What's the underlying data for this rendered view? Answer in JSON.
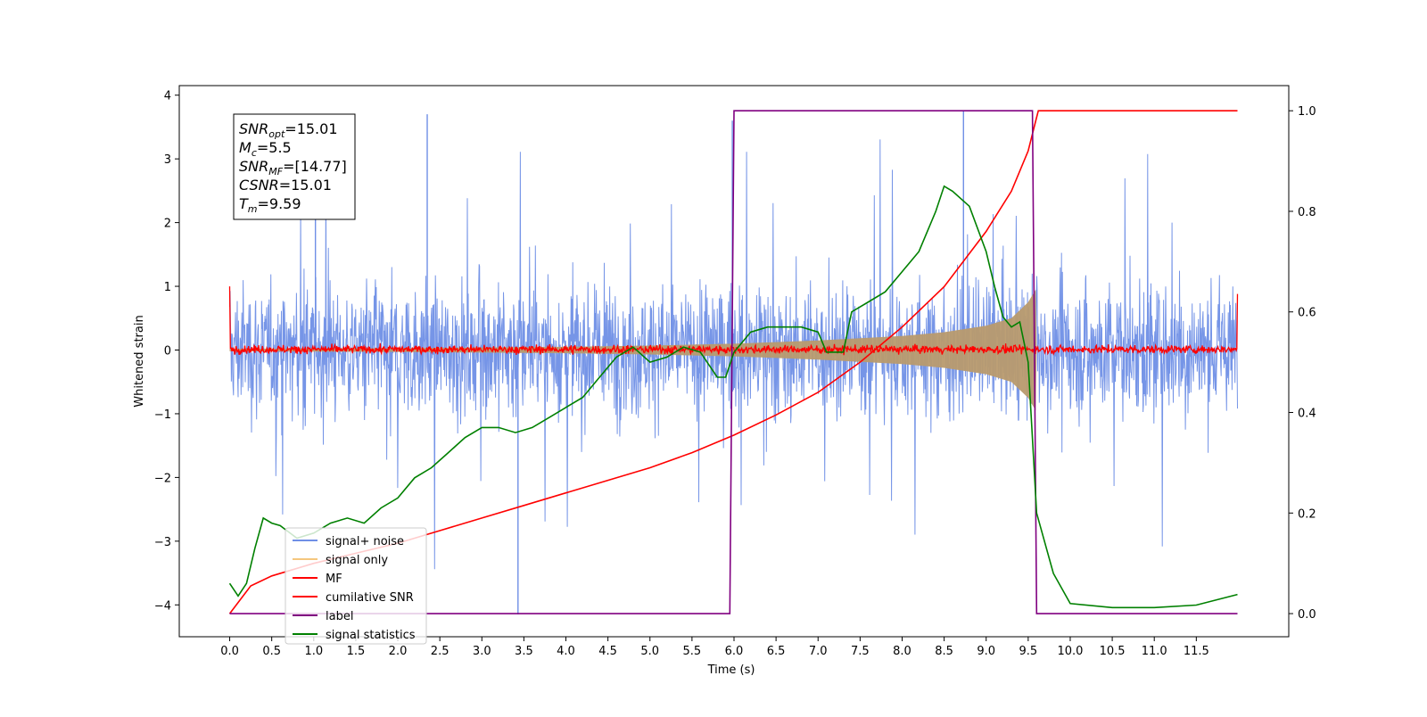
{
  "chart_data": {
    "type": "line",
    "xlabel": "Time (s)",
    "ylabel_left": "Whitened strain",
    "ylabel_right": "",
    "xlim": [
      -0.6,
      12.6
    ],
    "ylim_left": [
      -4.5,
      4.15
    ],
    "ylim_right": [
      -0.046,
      1.05
    ],
    "x_ticks": [
      "0.0",
      "0.5",
      "1.0",
      "1.5",
      "2.0",
      "2.5",
      "3.0",
      "3.5",
      "4.0",
      "4.5",
      "5.0",
      "5.5",
      "6.0",
      "6.5",
      "7.0",
      "7.5",
      "8.0",
      "8.5",
      "9.0",
      "9.5",
      "10.0",
      "10.5",
      "11.0",
      "11.5"
    ],
    "y_left_ticks": [
      "4",
      "3",
      "2",
      "1",
      "0",
      "−1",
      "−2",
      "−3",
      "−4"
    ],
    "y_right_ticks": [
      "1.0",
      "0.8",
      "0.6",
      "0.4",
      "0.2",
      "0.0"
    ],
    "grid": false,
    "legend_position": "lower-left",
    "annotation_box": {
      "position": "upper-left",
      "lines": [
        {
          "main": "SNR",
          "sub": "opt",
          "value": "=15.01"
        },
        {
          "main": "M",
          "sub": "c",
          "value": "=5.5"
        },
        {
          "main": "SNR",
          "sub": "MF",
          "value": "=[14.77]"
        },
        {
          "main": "CSNR",
          "sub": "",
          "value": "=15.01"
        },
        {
          "main": "T",
          "sub": "m",
          "value": "=9.59"
        }
      ]
    },
    "series": [
      {
        "name": "signal+ noise",
        "axis": "left",
        "color": "#6f8fe6",
        "kind": "noise_band",
        "x_range": [
          0.0,
          11.99
        ],
        "typical_range": [
          -1.5,
          1.6
        ],
        "extremes": [
          -4.15,
          3.75
        ],
        "spikes": [
          {
            "x": 3.43,
            "y": -4.15
          },
          {
            "x": 8.73,
            "y": 3.75
          },
          {
            "x": 5.98,
            "y": 3.6
          },
          {
            "x": 2.35,
            "y": 3.7
          },
          {
            "x": 1.02,
            "y": 3.4
          }
        ]
      },
      {
        "name": "signal only",
        "axis": "left",
        "color": "#f5c77e",
        "kind": "chirp_envelope",
        "x": [
          0.0,
          2.0,
          4.0,
          5.0,
          6.0,
          7.0,
          8.0,
          8.5,
          9.0,
          9.3,
          9.5,
          9.59,
          9.6
        ],
        "amplitude": [
          0.02,
          0.03,
          0.05,
          0.07,
          0.1,
          0.15,
          0.22,
          0.28,
          0.38,
          0.5,
          0.75,
          0.95,
          0.0
        ]
      },
      {
        "name": "MF",
        "axis": "left",
        "color": "#ff0000",
        "kind": "noise_band",
        "x_range": [
          0.0,
          11.99
        ],
        "typical_range": [
          -0.12,
          0.14
        ],
        "edge_values": {
          "start": 1.0,
          "end": 0.88
        }
      },
      {
        "name": "cumilative SNR",
        "axis": "right",
        "color": "#ff0000",
        "x": [
          0.0,
          0.25,
          0.5,
          1.0,
          1.5,
          2.0,
          2.5,
          3.0,
          3.5,
          4.0,
          4.5,
          5.0,
          5.5,
          6.0,
          6.5,
          7.0,
          7.5,
          8.0,
          8.5,
          9.0,
          9.3,
          9.5,
          9.59,
          9.62,
          11.99
        ],
        "y": [
          0.0,
          0.055,
          0.075,
          0.1,
          0.12,
          0.14,
          0.165,
          0.19,
          0.215,
          0.24,
          0.265,
          0.29,
          0.32,
          0.355,
          0.395,
          0.44,
          0.5,
          0.57,
          0.65,
          0.76,
          0.84,
          0.92,
          0.98,
          1.0,
          1.0
        ]
      },
      {
        "name": "label",
        "axis": "right",
        "color": "#800080",
        "x": [
          0.0,
          5.95,
          6.0,
          9.55,
          9.6,
          11.99
        ],
        "y": [
          0.0,
          0.0,
          1.0,
          1.0,
          0.0,
          0.0
        ]
      },
      {
        "name": "signal statistics",
        "axis": "right",
        "color": "#008000",
        "x": [
          0.0,
          0.1,
          0.2,
          0.3,
          0.4,
          0.5,
          0.6,
          0.8,
          1.0,
          1.2,
          1.4,
          1.6,
          1.8,
          2.0,
          2.2,
          2.4,
          2.6,
          2.8,
          3.0,
          3.2,
          3.4,
          3.6,
          3.8,
          4.0,
          4.2,
          4.4,
          4.6,
          4.8,
          5.0,
          5.2,
          5.4,
          5.6,
          5.8,
          5.9,
          6.0,
          6.2,
          6.4,
          6.6,
          6.8,
          7.0,
          7.1,
          7.2,
          7.3,
          7.4,
          7.6,
          7.8,
          8.0,
          8.2,
          8.4,
          8.5,
          8.6,
          8.8,
          9.0,
          9.1,
          9.2,
          9.3,
          9.4,
          9.5,
          9.6,
          9.8,
          10.0,
          10.5,
          11.0,
          11.5,
          11.99
        ],
        "y": [
          0.06,
          0.035,
          0.06,
          0.13,
          0.19,
          0.18,
          0.175,
          0.15,
          0.16,
          0.18,
          0.19,
          0.18,
          0.21,
          0.23,
          0.27,
          0.29,
          0.32,
          0.35,
          0.37,
          0.37,
          0.36,
          0.37,
          0.39,
          0.41,
          0.43,
          0.47,
          0.51,
          0.53,
          0.5,
          0.51,
          0.53,
          0.52,
          0.47,
          0.47,
          0.52,
          0.56,
          0.57,
          0.57,
          0.57,
          0.56,
          0.52,
          0.52,
          0.52,
          0.6,
          0.62,
          0.64,
          0.68,
          0.72,
          0.8,
          0.85,
          0.84,
          0.81,
          0.72,
          0.65,
          0.59,
          0.57,
          0.58,
          0.5,
          0.2,
          0.08,
          0.02,
          0.012,
          0.012,
          0.017,
          0.038
        ]
      }
    ]
  }
}
